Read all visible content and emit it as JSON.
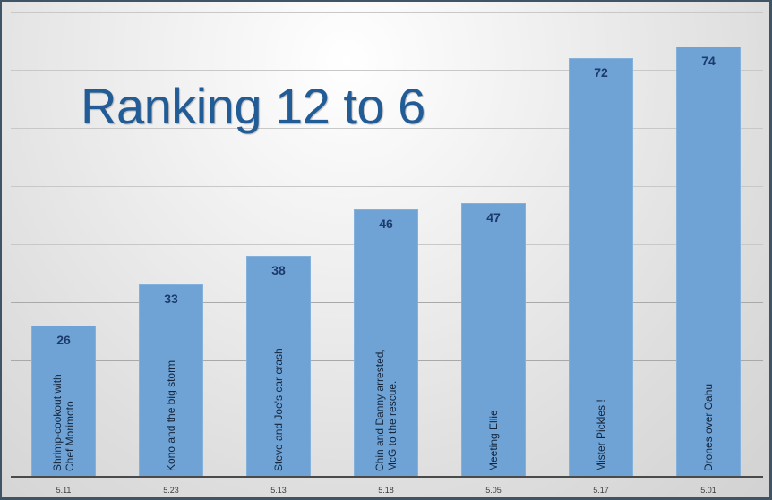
{
  "chart_data": {
    "type": "bar",
    "title": "Ranking 12 to 6",
    "xlabel": "",
    "ylabel": "",
    "ylim": [
      0,
      80
    ],
    "grid": true,
    "legend": "none",
    "bar_color": "#6fa3d6",
    "value_label_color": "#1c3a6b",
    "title_color": "#215c96",
    "categories": [
      "5.11",
      "5.23",
      "5.13",
      "5.18",
      "5.05",
      "5.17",
      "5.01"
    ],
    "bar_labels": [
      "Shrimp-cookout with\nChef Morimoto",
      "Kono and the big storm",
      "Steve and Joe's car crash",
      "Chin and Danny arrested,\nMcG to the rescue.",
      "Meeting Ellie",
      "Mister Pickles !",
      "Drones over Oahu"
    ],
    "values": [
      26,
      33,
      38,
      46,
      47,
      72,
      74
    ]
  }
}
